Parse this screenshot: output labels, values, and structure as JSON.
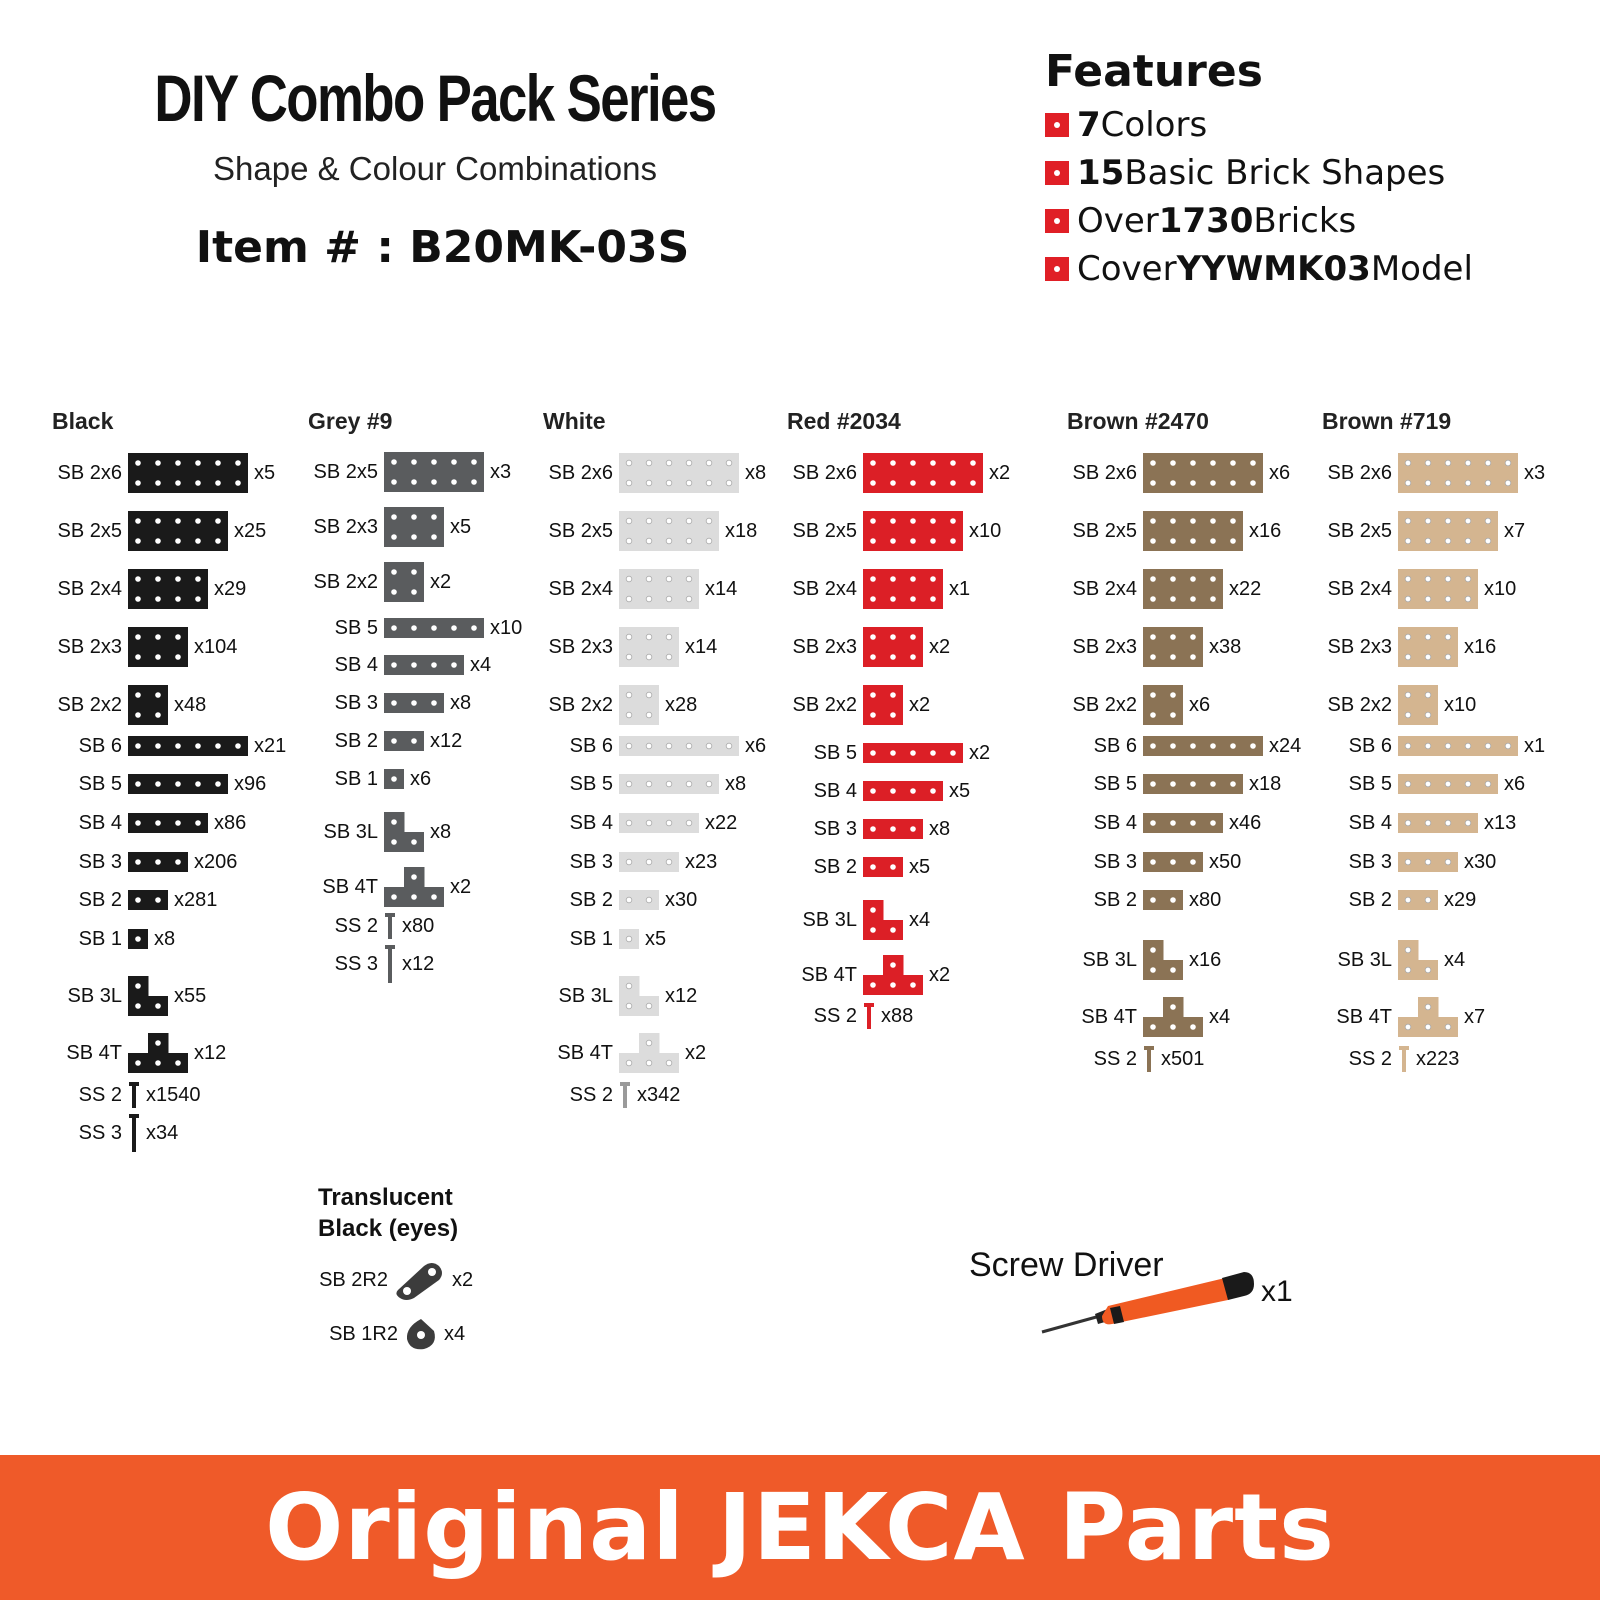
{
  "header": {
    "title": "DIY Combo Pack Series",
    "subtitle": "Shape & Colour Combinations",
    "item": "Item # : B20MK-03S"
  },
  "features": {
    "heading": "Features",
    "items": [
      {
        "bold": "7",
        "text": " Colors",
        "pre": ""
      },
      {
        "bold": "15",
        "text": " Basic Brick Shapes",
        "pre": ""
      },
      {
        "pre": "Over ",
        "bold": "1730",
        "text": " Bricks"
      },
      {
        "pre": "Cover ",
        "bold": "YYWMK03",
        "text": " Model"
      }
    ],
    "bullet_color": "#e01f26"
  },
  "columns": [
    {
      "name": "Black",
      "color": "#1a1a1a",
      "parts": [
        {
          "label": "SB 2x6",
          "qty": "x5"
        },
        {
          "label": "SB 2x5",
          "qty": "x25"
        },
        {
          "label": "SB 2x4",
          "qty": "x29"
        },
        {
          "label": "SB 2x3",
          "qty": "x104"
        },
        {
          "label": "SB 2x2",
          "qty": "x48"
        },
        {
          "label": "SB 6",
          "qty": "x21"
        },
        {
          "label": "SB 5",
          "qty": "x96"
        },
        {
          "label": "SB 4",
          "qty": "x86"
        },
        {
          "label": "SB 3",
          "qty": "x206"
        },
        {
          "label": "SB 2",
          "qty": "x281"
        },
        {
          "label": "SB 1",
          "qty": "x8"
        },
        {
          "label": "SB 3L",
          "qty": "x55"
        },
        {
          "label": "SB 4T",
          "qty": "x12"
        },
        {
          "label": "SS 2",
          "qty": "x1540"
        },
        {
          "label": "SS 3",
          "qty": "x34"
        }
      ]
    },
    {
      "name": "Grey #9",
      "color": "#5a5c5e",
      "parts": [
        {
          "label": "SB 2x5",
          "qty": "x3"
        },
        {
          "label": "SB 2x3",
          "qty": "x5"
        },
        {
          "label": "SB 2x2",
          "qty": "x2"
        },
        {
          "label": "SB 5",
          "qty": "x10"
        },
        {
          "label": "SB 4",
          "qty": "x4"
        },
        {
          "label": "SB 3",
          "qty": "x8"
        },
        {
          "label": "SB 2",
          "qty": "x12"
        },
        {
          "label": "SB 1",
          "qty": "x6"
        },
        {
          "label": "SB 3L",
          "qty": "x8"
        },
        {
          "label": "SB 4T",
          "qty": "x2"
        },
        {
          "label": "SS 2",
          "qty": "x80"
        },
        {
          "label": "SS 3",
          "qty": "x12"
        }
      ]
    },
    {
      "name": "White",
      "color": "#dcdcdc",
      "parts": [
        {
          "label": "SB 2x6",
          "qty": "x8"
        },
        {
          "label": "SB 2x5",
          "qty": "x18"
        },
        {
          "label": "SB 2x4",
          "qty": "x14"
        },
        {
          "label": "SB 2x3",
          "qty": "x14"
        },
        {
          "label": "SB 2x2",
          "qty": "x28"
        },
        {
          "label": "SB 6",
          "qty": "x6"
        },
        {
          "label": "SB 5",
          "qty": "x8"
        },
        {
          "label": "SB 4",
          "qty": "x22"
        },
        {
          "label": "SB 3",
          "qty": "x23"
        },
        {
          "label": "SB 2",
          "qty": "x30"
        },
        {
          "label": "SB 1",
          "qty": "x5"
        },
        {
          "label": "SB 3L",
          "qty": "x12"
        },
        {
          "label": "SB 4T",
          "qty": "x2"
        },
        {
          "label": "SS 2",
          "qty": "x342"
        }
      ]
    },
    {
      "name": "Red #2034",
      "color": "#dc1f26",
      "parts": [
        {
          "label": "SB 2x6",
          "qty": "x2"
        },
        {
          "label": "SB 2x5",
          "qty": "x10"
        },
        {
          "label": "SB 2x4",
          "qty": "x1"
        },
        {
          "label": "SB 2x3",
          "qty": "x2"
        },
        {
          "label": "SB 2x2",
          "qty": "x2"
        },
        {
          "label": "SB 5",
          "qty": "x2"
        },
        {
          "label": "SB 4",
          "qty": "x5"
        },
        {
          "label": "SB 3",
          "qty": "x8"
        },
        {
          "label": "SB 2",
          "qty": "x5"
        },
        {
          "label": "SB 3L",
          "qty": "x4"
        },
        {
          "label": "SB 4T",
          "qty": "x2"
        },
        {
          "label": "SS 2",
          "qty": "x88"
        }
      ]
    },
    {
      "name": "Brown #2470",
      "color": "#8b7355",
      "parts": [
        {
          "label": "SB 2x6",
          "qty": "x6"
        },
        {
          "label": "SB 2x5",
          "qty": "x16"
        },
        {
          "label": "SB 2x4",
          "qty": "x22"
        },
        {
          "label": "SB 2x3",
          "qty": "x38"
        },
        {
          "label": "SB 2x2",
          "qty": "x6"
        },
        {
          "label": "SB 6",
          "qty": "x24"
        },
        {
          "label": "SB 5",
          "qty": "x18"
        },
        {
          "label": "SB 4",
          "qty": "x46"
        },
        {
          "label": "SB 3",
          "qty": "x50"
        },
        {
          "label": "SB 2",
          "qty": "x80"
        },
        {
          "label": "SB 3L",
          "qty": "x16"
        },
        {
          "label": "SB 4T",
          "qty": "x4"
        },
        {
          "label": "SS 2",
          "qty": "x501"
        }
      ]
    },
    {
      "name": "Brown #719",
      "color": "#d4b590",
      "parts": [
        {
          "label": "SB 2x6",
          "qty": "x3"
        },
        {
          "label": "SB 2x5",
          "qty": "x7"
        },
        {
          "label": "SB 2x4",
          "qty": "x10"
        },
        {
          "label": "SB 2x3",
          "qty": "x16"
        },
        {
          "label": "SB 2x2",
          "qty": "x10"
        },
        {
          "label": "SB 6",
          "qty": "x1"
        },
        {
          "label": "SB 5",
          "qty": "x6"
        },
        {
          "label": "SB 4",
          "qty": "x13"
        },
        {
          "label": "SB 3",
          "qty": "x30"
        },
        {
          "label": "SB 2",
          "qty": "x29"
        },
        {
          "label": "SB 3L",
          "qty": "x4"
        },
        {
          "label": "SB 4T",
          "qty": "x7"
        },
        {
          "label": "SS 2",
          "qty": "x223"
        }
      ]
    }
  ],
  "translucent": {
    "heading_line1": "Translucent",
    "heading_line2": "Black (eyes)",
    "color": "#3c3c3c",
    "parts": [
      {
        "label": "SB 2R2",
        "qty": "x2"
      },
      {
        "label": "SB 1R2",
        "qty": "x4"
      }
    ]
  },
  "driver": {
    "label": "Screw Driver",
    "qty": "x1",
    "color": "#f05a22"
  },
  "footer": {
    "text": "Original JEKCA Parts",
    "color": "#ef5a29"
  }
}
